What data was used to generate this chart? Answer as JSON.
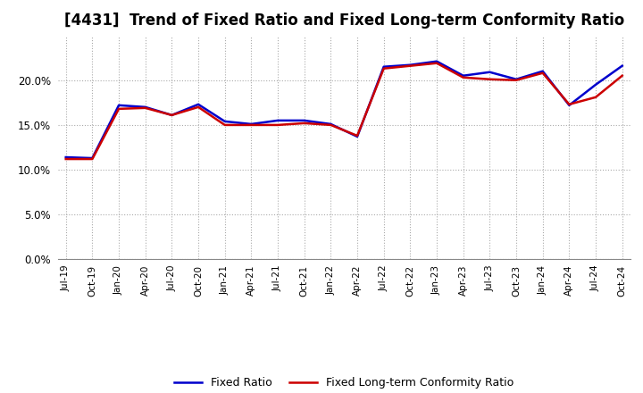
{
  "title": "[4431]  Trend of Fixed Ratio and Fixed Long-term Conformity Ratio",
  "x_labels": [
    "Jul-19",
    "Oct-19",
    "Jan-20",
    "Apr-20",
    "Jul-20",
    "Oct-20",
    "Jan-21",
    "Apr-21",
    "Jul-21",
    "Oct-21",
    "Jan-22",
    "Apr-22",
    "Jul-22",
    "Oct-22",
    "Jan-23",
    "Apr-23",
    "Jul-23",
    "Oct-23",
    "Jan-24",
    "Apr-24",
    "Jul-24",
    "Oct-24"
  ],
  "fixed_ratio": [
    11.4,
    11.3,
    17.2,
    17.0,
    16.1,
    17.3,
    15.4,
    15.1,
    15.5,
    15.5,
    15.1,
    13.7,
    21.5,
    21.7,
    22.1,
    20.5,
    20.9,
    20.1,
    21.0,
    17.2,
    19.5,
    21.6
  ],
  "fixed_lt_ratio": [
    11.2,
    11.2,
    16.8,
    16.9,
    16.1,
    17.0,
    15.0,
    15.0,
    15.0,
    15.2,
    15.0,
    13.8,
    21.3,
    21.6,
    21.9,
    20.3,
    20.1,
    20.0,
    20.8,
    17.3,
    18.1,
    20.5
  ],
  "fixed_ratio_color": "#0000cc",
  "fixed_lt_ratio_color": "#cc0000",
  "ylim": [
    0,
    25
  ],
  "yticks": [
    0.0,
    5.0,
    10.0,
    15.0,
    20.0
  ],
  "background_color": "#ffffff",
  "plot_background_color": "#ffffff",
  "grid_color": "#aaaaaa",
  "title_fontsize": 12,
  "legend_fixed_ratio": "Fixed Ratio",
  "legend_fixed_lt_ratio": "Fixed Long-term Conformity Ratio"
}
